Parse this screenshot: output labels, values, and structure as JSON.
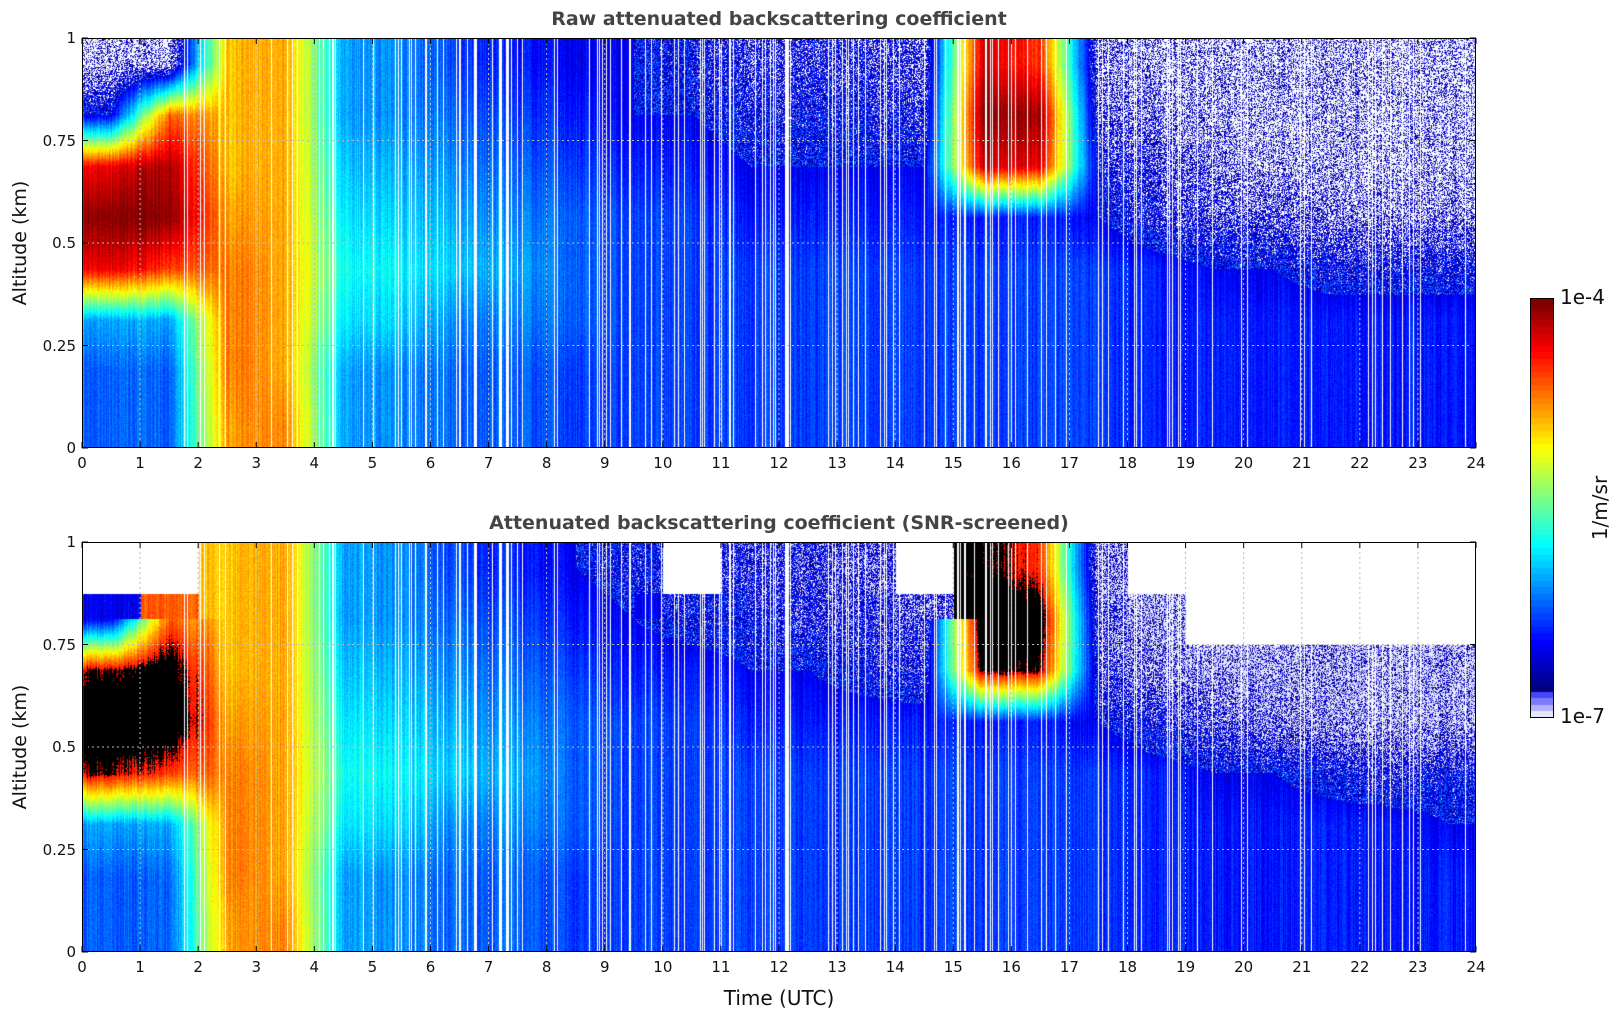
{
  "chart_data": [
    {
      "type": "heatmap",
      "title": "Raw attenuated backscattering coefficient",
      "xlabel": "",
      "ylabel": "Altitude (km)",
      "xlim": [
        0,
        24
      ],
      "ylim": [
        0,
        1
      ],
      "x_ticks": [
        "0",
        "1",
        "2",
        "3",
        "4",
        "5",
        "6",
        "7",
        "8",
        "9",
        "10",
        "11",
        "12",
        "13",
        "14",
        "15",
        "16",
        "17",
        "18",
        "19",
        "20",
        "21",
        "22",
        "23",
        "24"
      ],
      "y_ticks": [
        "0",
        "0.25",
        "0.5",
        "0.75",
        "1"
      ],
      "value_scale": "log10",
      "altitude_bins_km": [
        0.0625,
        0.1875,
        0.3125,
        0.4375,
        0.5625,
        0.6875,
        0.8125,
        0.9375
      ],
      "hour_bins": [
        0.5,
        1.5,
        2.5,
        3.5,
        4.5,
        5.5,
        6.5,
        7.5,
        8.5,
        9.5,
        10.5,
        11.5,
        12.5,
        13.5,
        14.5,
        15.5,
        16.5,
        17.5,
        18.5,
        19.5,
        20.5,
        21.5,
        22.5,
        23.5
      ],
      "log10_values": [
        [
          -6.2,
          -6.2,
          -4.8,
          -4.7,
          -6.0,
          -6.1,
          -6.2,
          -6.2,
          -6.3,
          -6.3,
          -6.3,
          -6.3,
          -6.3,
          -6.3,
          -6.3,
          -6.3,
          -6.3,
          -6.3,
          -6.4,
          -6.4,
          -6.4,
          -6.4,
          -6.4,
          -6.4
        ],
        [
          -6.2,
          -6.2,
          -4.7,
          -4.8,
          -6.0,
          -6.1,
          -6.2,
          -6.2,
          -6.3,
          -6.3,
          -6.3,
          -6.3,
          -6.3,
          -6.3,
          -6.3,
          -6.3,
          -6.3,
          -6.3,
          -6.4,
          -6.4,
          -6.4,
          -6.4,
          -6.4,
          -6.4
        ],
        [
          -6.0,
          -6.0,
          -4.7,
          -4.8,
          -5.8,
          -5.9,
          -6.1,
          -6.1,
          -6.2,
          -6.3,
          -6.3,
          -6.3,
          -6.3,
          -6.3,
          -6.3,
          -6.3,
          -6.3,
          -6.3,
          -6.4,
          -6.4,
          -6.4,
          -6.4,
          -6.4,
          -6.4
        ],
        [
          -4.3,
          -4.5,
          -4.7,
          -4.8,
          -5.7,
          -5.8,
          -5.9,
          -6.0,
          -6.2,
          -6.3,
          -6.3,
          -6.3,
          -6.3,
          -6.3,
          -6.3,
          -6.3,
          -6.3,
          -6.3,
          -6.4,
          -6.5,
          -6.5,
          -6.6,
          -6.6,
          -6.6
        ],
        [
          -4.0,
          -4.0,
          -4.8,
          -4.8,
          -5.8,
          -5.9,
          -6.0,
          -6.1,
          -6.2,
          -6.3,
          -6.3,
          -6.4,
          -6.4,
          -6.4,
          -6.4,
          -6.4,
          -6.4,
          -6.5,
          -6.7,
          -6.8,
          -6.8,
          -6.9,
          -6.9,
          -6.9
        ],
        [
          -4.3,
          -4.1,
          -4.9,
          -4.8,
          -5.9,
          -6.0,
          -6.1,
          -6.2,
          -6.3,
          -6.4,
          -6.4,
          -6.5,
          -6.5,
          -6.5,
          -6.5,
          -4.2,
          -4.3,
          -6.6,
          -6.8,
          -6.9,
          -7.0,
          -7.0,
          -7.0,
          -7.0
        ],
        [
          -6.5,
          -4.6,
          -4.9,
          -4.8,
          -6.0,
          -6.1,
          -6.2,
          -6.3,
          -6.4,
          -6.5,
          -6.5,
          -6.6,
          -6.6,
          -6.6,
          -6.7,
          -4.0,
          -4.1,
          -6.8,
          -6.9,
          -7.0,
          -7.0,
          -7.0,
          -7.0,
          -7.0
        ],
        [
          -7.0,
          -7.0,
          -4.9,
          -4.8,
          -6.0,
          -6.1,
          -6.3,
          -6.4,
          -6.5,
          -6.5,
          -6.6,
          -6.7,
          -6.7,
          -6.7,
          -6.8,
          -4.2,
          -4.5,
          -6.9,
          -7.0,
          -7.0,
          -7.0,
          -7.0,
          -7.0,
          -7.0
        ]
      ]
    },
    {
      "type": "heatmap",
      "title": "Attenuated backscattering coefficient (SNR-screened)",
      "xlabel": "Time (UTC)",
      "ylabel": "Altitude (km)",
      "xlim": [
        0,
        24
      ],
      "ylim": [
        0,
        1
      ],
      "x_ticks": [
        "0",
        "1",
        "2",
        "3",
        "4",
        "5",
        "6",
        "7",
        "8",
        "9",
        "10",
        "11",
        "12",
        "13",
        "14",
        "15",
        "16",
        "17",
        "18",
        "19",
        "20",
        "21",
        "22",
        "23",
        "24"
      ],
      "y_ticks": [
        "0",
        "0.25",
        "0.5",
        "0.75",
        "1"
      ],
      "value_scale": "log10",
      "saturated_above_log10": -4.35,
      "altitude_bins_km": [
        0.0625,
        0.1875,
        0.3125,
        0.4375,
        0.5625,
        0.6875,
        0.8125,
        0.9375
      ],
      "hour_bins": [
        0.5,
        1.5,
        2.5,
        3.5,
        4.5,
        5.5,
        6.5,
        7.5,
        8.5,
        9.5,
        10.5,
        11.5,
        12.5,
        13.5,
        14.5,
        15.5,
        16.5,
        17.5,
        18.5,
        19.5,
        20.5,
        21.5,
        22.5,
        23.5
      ],
      "log10_values": [
        [
          -6.2,
          -6.2,
          -4.8,
          -4.7,
          -6.0,
          -6.1,
          -6.2,
          -6.2,
          -6.3,
          -6.3,
          -6.3,
          -6.3,
          -6.3,
          -6.3,
          -6.3,
          -6.3,
          -6.3,
          -6.3,
          -6.4,
          -6.4,
          -6.4,
          -6.4,
          -6.4,
          -6.4
        ],
        [
          -6.2,
          -6.2,
          -4.7,
          -4.8,
          -6.0,
          -6.1,
          -6.2,
          -6.2,
          -6.3,
          -6.3,
          -6.3,
          -6.3,
          -6.3,
          -6.3,
          -6.3,
          -6.3,
          -6.3,
          -6.3,
          -6.4,
          -6.4,
          -6.4,
          -6.4,
          -6.4,
          -6.4
        ],
        [
          -6.0,
          -6.0,
          -4.7,
          -4.8,
          -5.8,
          -5.9,
          -6.1,
          -6.1,
          -6.2,
          -6.3,
          -6.3,
          -6.3,
          -6.3,
          -6.3,
          -6.3,
          -6.3,
          -6.3,
          -6.3,
          -6.4,
          -6.4,
          -6.4,
          -6.4,
          -6.4,
          -6.5
        ],
        [
          -4.3,
          -4.5,
          -4.7,
          -4.8,
          -5.7,
          -5.8,
          -5.9,
          -6.0,
          -6.2,
          -6.3,
          -6.3,
          -6.3,
          -6.3,
          -6.3,
          -6.3,
          -6.3,
          -6.3,
          -6.3,
          -6.4,
          -6.5,
          -6.5,
          -6.6,
          -6.7,
          -6.6
        ],
        [
          -4.0,
          -4.0,
          -4.8,
          -4.8,
          -5.8,
          -5.9,
          -6.0,
          -6.1,
          -6.2,
          -6.3,
          -6.3,
          -6.4,
          -6.4,
          -6.4,
          -6.4,
          -6.4,
          -6.4,
          -6.5,
          -6.7,
          -6.8,
          -6.9,
          -7.0,
          -7.0,
          -7.0
        ],
        [
          -4.3,
          -4.1,
          -4.9,
          -4.8,
          -5.9,
          -6.0,
          -6.1,
          -6.2,
          -6.3,
          -6.4,
          -6.4,
          -6.5,
          -6.5,
          -6.6,
          -6.7,
          -4.2,
          -4.3,
          -6.7,
          -6.95,
          -7.0,
          -7.0,
          -7.0,
          -7.0,
          -7.0
        ],
        [
          -6.5,
          -4.6,
          -4.9,
          -4.8,
          -6.0,
          -6.1,
          -6.2,
          -6.3,
          -6.4,
          -6.5,
          -6.6,
          -6.6,
          -6.7,
          -6.7,
          -6.8,
          -4.0,
          -4.1,
          -6.8,
          -7.0,
          null,
          null,
          null,
          null,
          null
        ],
        [
          null,
          null,
          -4.9,
          -4.8,
          -6.0,
          -6.1,
          -6.3,
          -6.4,
          -6.5,
          -6.6,
          null,
          -6.7,
          -6.7,
          -6.8,
          null,
          -4.2,
          -4.5,
          -6.9,
          null,
          null,
          null,
          null,
          null,
          null
        ]
      ]
    }
  ],
  "colorbar": {
    "label": "1/m/sr",
    "max_label": "1e-4",
    "min_label": "1e-7",
    "colormap": "jet",
    "low_color": "#e6e6fa",
    "saturated_color": "#000000"
  }
}
